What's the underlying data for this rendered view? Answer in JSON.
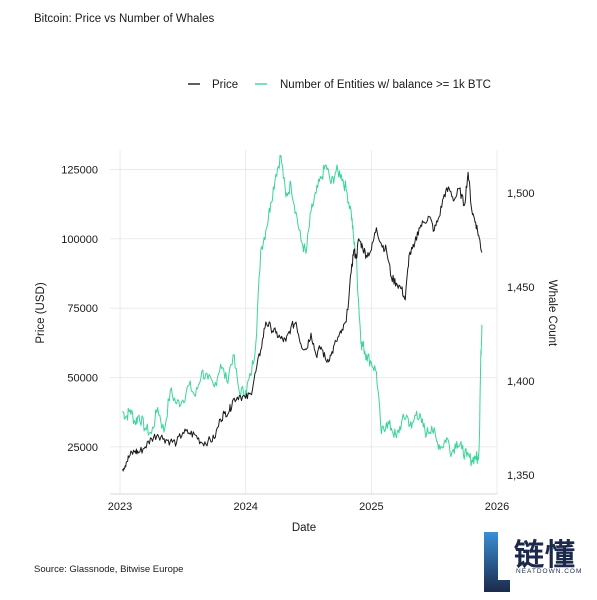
{
  "header": {
    "title": "Bitcoin: Price vs Number of Whales"
  },
  "footer": {
    "source": "Source: Glassnode, Bitwise Europe"
  },
  "watermark": {
    "text_cn": "链懂",
    "url": "NEATDOWN.COM"
  },
  "colors": {
    "price": "#1a1a1a",
    "whales": "#3dd49a",
    "grid": "#e6e6e6",
    "axis": "#cccccc"
  },
  "chart_data": {
    "type": "line",
    "title": "Bitcoin: Price vs Number of Whales",
    "xlabel": "Date",
    "ylabel": "Price (USD)",
    "y2label": "Whale Count",
    "grid": true,
    "legend_position": "top",
    "xlim": [
      2022.92,
      2026.0
    ],
    "x_ticks": [
      2023,
      2024,
      2025,
      2026
    ],
    "x_tick_labels": [
      "2023",
      "2024",
      "2025",
      "2026"
    ],
    "ylim": [
      8000,
      132000
    ],
    "y_ticks": [
      25000,
      50000,
      75000,
      100000,
      125000
    ],
    "y_tick_labels": [
      "25000",
      "50000",
      "75000",
      "100000",
      "125000"
    ],
    "y2lim": [
      1340,
      1523
    ],
    "y2_ticks": [
      1350,
      1400,
      1450,
      1500
    ],
    "y2_tick_labels": [
      "1,350",
      "1,400",
      "1,450",
      "1,500"
    ],
    "series": [
      {
        "name": "Price",
        "axis": "left",
        "x": [
          2023.02,
          2023.05,
          2023.08,
          2023.12,
          2023.15,
          2023.2,
          2023.25,
          2023.3,
          2023.35,
          2023.4,
          2023.45,
          2023.5,
          2023.55,
          2023.6,
          2023.65,
          2023.7,
          2023.75,
          2023.8,
          2023.83,
          2023.87,
          2023.9,
          2023.95,
          2024.0,
          2024.04,
          2024.08,
          2024.12,
          2024.16,
          2024.2,
          2024.24,
          2024.28,
          2024.32,
          2024.36,
          2024.4,
          2024.44,
          2024.48,
          2024.52,
          2024.56,
          2024.6,
          2024.64,
          2024.68,
          2024.72,
          2024.76,
          2024.8,
          2024.84,
          2024.86,
          2024.88,
          2024.9,
          2024.93,
          2024.96,
          2025.0,
          2025.04,
          2025.08,
          2025.12,
          2025.16,
          2025.2,
          2025.24,
          2025.27,
          2025.3,
          2025.34,
          2025.38,
          2025.42,
          2025.46,
          2025.5,
          2025.54,
          2025.58,
          2025.62,
          2025.66,
          2025.7,
          2025.74,
          2025.77,
          2025.8,
          2025.83,
          2025.86,
          2025.88
        ],
        "values": [
          17000,
          19500,
          22000,
          23500,
          23000,
          25000,
          28000,
          29500,
          28000,
          27000,
          26500,
          30200,
          30000,
          29200,
          26500,
          27000,
          28000,
          35000,
          37000,
          38000,
          42000,
          43500,
          42500,
          44000,
          52000,
          60000,
          70000,
          68000,
          66000,
          64000,
          63000,
          68000,
          70000,
          62000,
          60000,
          66000,
          58000,
          61000,
          56000,
          58000,
          63000,
          66000,
          70000,
          88000,
          96000,
          93000,
          100000,
          97000,
          94000,
          96000,
          104000,
          98000,
          96000,
          86000,
          84000,
          82000,
          78000,
          94000,
          97000,
          104000,
          106000,
          108000,
          103000,
          108000,
          116000,
          118000,
          114000,
          118000,
          112000,
          124000,
          110000,
          106000,
          100000,
          95000
        ]
      },
      {
        "name": "Number of Entities w/ balance >= 1k BTC",
        "axis": "right",
        "x": [
          2023.02,
          2023.05,
          2023.08,
          2023.12,
          2023.15,
          2023.2,
          2023.25,
          2023.3,
          2023.35,
          2023.4,
          2023.45,
          2023.5,
          2023.55,
          2023.6,
          2023.65,
          2023.7,
          2023.75,
          2023.8,
          2023.85,
          2023.9,
          2023.95,
          2024.0,
          2024.04,
          2024.08,
          2024.12,
          2024.16,
          2024.2,
          2024.24,
          2024.28,
          2024.32,
          2024.36,
          2024.4,
          2024.44,
          2024.48,
          2024.52,
          2024.56,
          2024.6,
          2024.64,
          2024.68,
          2024.72,
          2024.76,
          2024.8,
          2024.84,
          2024.86,
          2024.88,
          2024.9,
          2024.92,
          2024.94,
          2024.96,
          2025.0,
          2025.04,
          2025.08,
          2025.12,
          2025.16,
          2025.2,
          2025.24,
          2025.28,
          2025.32,
          2025.36,
          2025.4,
          2025.44,
          2025.48,
          2025.52,
          2025.56,
          2025.6,
          2025.64,
          2025.68,
          2025.72,
          2025.76,
          2025.8,
          2025.83,
          2025.85,
          2025.86,
          2025.87,
          2025.88
        ],
        "values": [
          1384,
          1381,
          1385,
          1378,
          1382,
          1375,
          1372,
          1386,
          1373,
          1395,
          1388,
          1390,
          1398,
          1392,
          1405,
          1401,
          1397,
          1409,
          1400,
          1414,
          1394,
          1395,
          1403,
          1420,
          1470,
          1480,
          1495,
          1510,
          1520,
          1498,
          1505,
          1490,
          1475,
          1468,
          1490,
          1500,
          1508,
          1515,
          1505,
          1512,
          1510,
          1502,
          1490,
          1475,
          1465,
          1440,
          1420,
          1418,
          1414,
          1410,
          1405,
          1372,
          1378,
          1375,
          1370,
          1378,
          1382,
          1375,
          1384,
          1378,
          1372,
          1376,
          1368,
          1365,
          1370,
          1362,
          1368,
          1364,
          1360,
          1358,
          1360,
          1358,
          1370,
          1410,
          1430
        ]
      }
    ]
  }
}
